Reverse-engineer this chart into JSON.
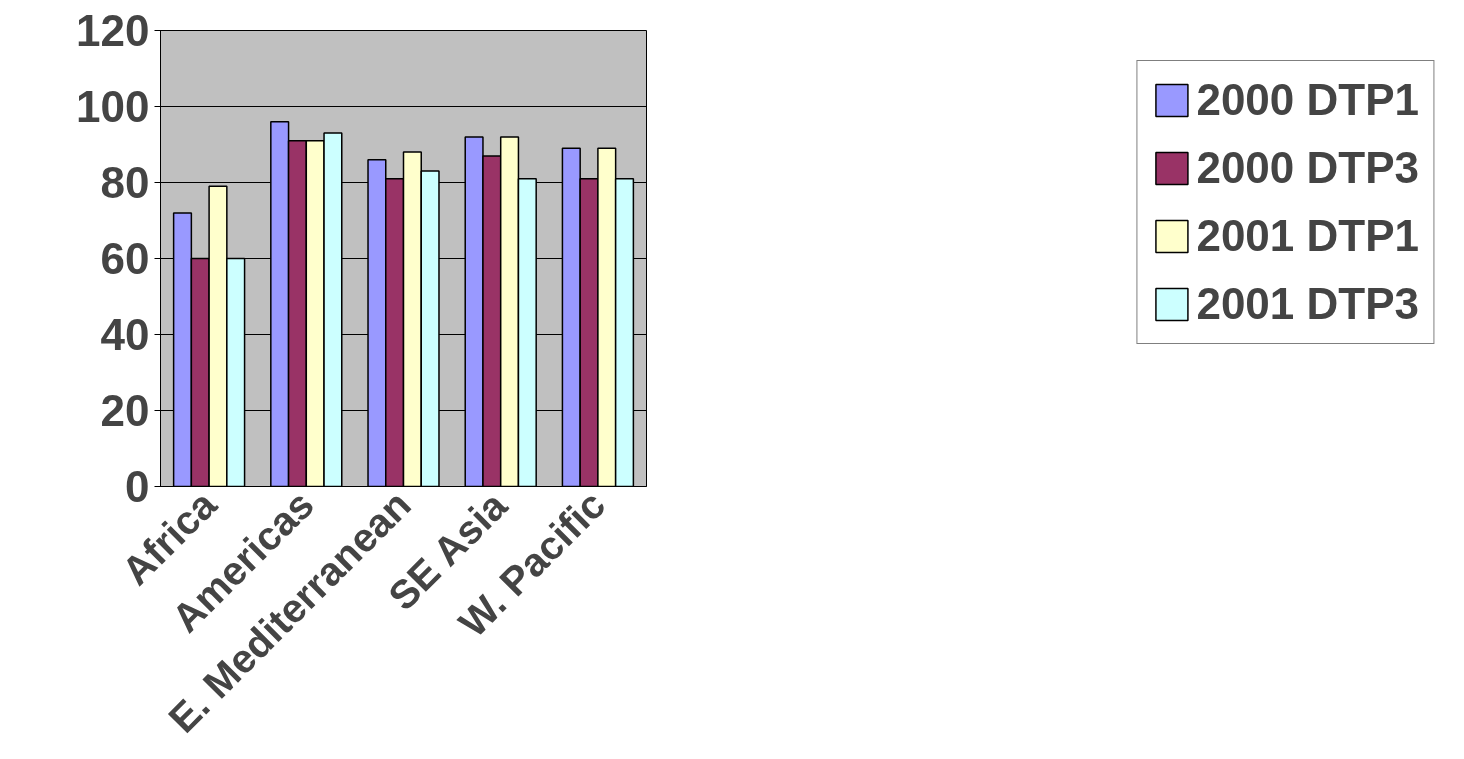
{
  "chart_data": {
    "type": "bar",
    "categories": [
      "Africa",
      "Americas",
      "E. Mediterranean",
      "SE Asia",
      "W. Pacific"
    ],
    "series": [
      {
        "name": "2000 DTP1",
        "color": "#9999ff",
        "values": [
          72,
          96,
          86,
          92,
          89
        ]
      },
      {
        "name": "2000 DTP3",
        "color": "#993366",
        "values": [
          60,
          91,
          81,
          87,
          81
        ]
      },
      {
        "name": "2001 DTP1",
        "color": "#ffffcc",
        "values": [
          79,
          91,
          88,
          92,
          89
        ]
      },
      {
        "name": "2001 DTP3",
        "color": "#ccffff",
        "values": [
          60,
          93,
          83,
          81,
          81
        ]
      }
    ],
    "ylim": [
      0,
      120
    ],
    "yticks": [
      0,
      20,
      40,
      60,
      80,
      100,
      120
    ],
    "grid": "y",
    "legend": "right"
  }
}
